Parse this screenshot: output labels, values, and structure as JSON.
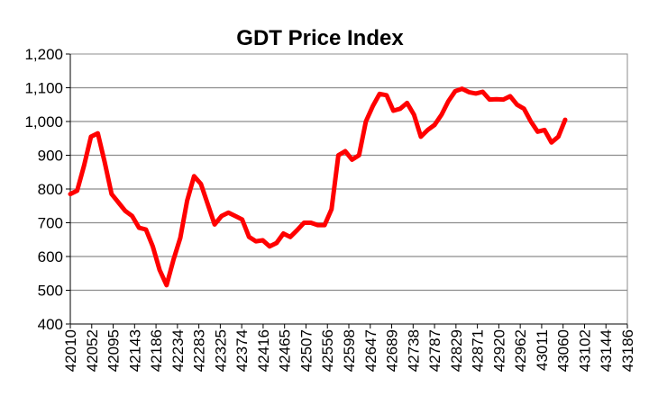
{
  "chart_data": {
    "type": "line",
    "title": "GDT Price Index",
    "xlabel": "",
    "ylabel": "",
    "ylim": [
      400,
      1200
    ],
    "ytick_step": 100,
    "ytick_labels": [
      "400",
      "500",
      "600",
      "700",
      "800",
      "900",
      "1,000",
      "1,100",
      "1,200"
    ],
    "xlim": [
      42010,
      43186
    ],
    "xtick_labels": [
      "42010",
      "42052",
      "42095",
      "42143",
      "42186",
      "42234",
      "42283",
      "42325",
      "42374",
      "42416",
      "42465",
      "42507",
      "42556",
      "42598",
      "42647",
      "42689",
      "42738",
      "42787",
      "42829",
      "42871",
      "42920",
      "42962",
      "43011",
      "43060",
      "43102",
      "43144",
      "43186"
    ],
    "grid": true,
    "legend": "none",
    "series": [
      {
        "name": "GDT Price Index",
        "color": "#ff0000",
        "values": [
          785,
          795,
          870,
          955,
          965,
          880,
          785,
          760,
          735,
          720,
          685,
          680,
          630,
          560,
          515,
          590,
          655,
          765,
          838,
          815,
          755,
          695,
          720,
          730,
          720,
          710,
          658,
          645,
          648,
          630,
          640,
          668,
          658,
          678,
          700,
          700,
          693,
          693,
          740,
          900,
          912,
          887,
          900,
          1000,
          1045,
          1082,
          1078,
          1032,
          1038,
          1055,
          1020,
          955,
          975,
          990,
          1020,
          1060,
          1090,
          1097,
          1087,
          1083,
          1088,
          1065,
          1066,
          1065,
          1075,
          1050,
          1038,
          1000,
          970,
          975,
          938,
          955,
          1005
        ]
      }
    ]
  }
}
